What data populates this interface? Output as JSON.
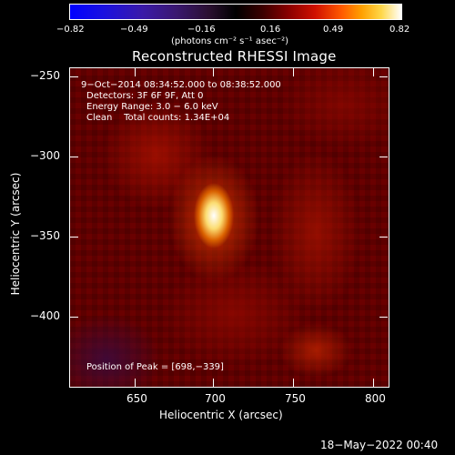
{
  "colorbar": {
    "ticks": [
      "−0.82",
      "−0.49",
      "−0.16",
      "0.16",
      "0.49",
      "0.82"
    ],
    "units": "(photons cm⁻² s⁻¹ asec⁻²)"
  },
  "image": {
    "title": "Reconstructed RHESSI Image",
    "time_range": "9−Oct−2014 08:34:52.000 to 08:38:52.000",
    "detectors": "Detectors: 3F 6F 9F, Att 0",
    "energy_range": "Energy Range: 3.0 − 6.0 keV",
    "method_counts": "Clean    Total counts: 1.34E+04",
    "peak_position": "Position of Peak = [698,−339]"
  },
  "axes": {
    "xlabel": "Heliocentric X (arcsec)",
    "ylabel": "Heliocentric Y (arcsec)",
    "xticks": [
      "650",
      "700",
      "750",
      "800"
    ],
    "yticks": [
      "−250",
      "−300",
      "−350",
      "−400"
    ]
  },
  "footer": {
    "timestamp": "18−May−2022 00:40"
  },
  "colors": {
    "background": "#000000",
    "text": "#ffffff",
    "peak": "#ffffff",
    "image_base": "#6a0000"
  }
}
